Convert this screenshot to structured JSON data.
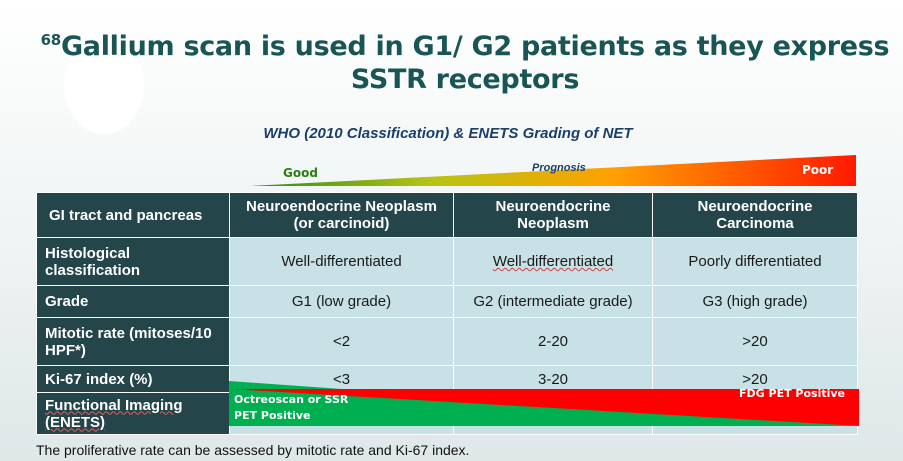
{
  "slide": {
    "title_sup": "68",
    "title_text": "Gallium scan is used in G1/ G2 patients as they express SSTR receptors",
    "subtitle": "WHO (2010 Classification)  & ENETS Grading of NET"
  },
  "prognosis": {
    "good": "Good",
    "middle": "Prognosis",
    "poor": "Poor"
  },
  "table": {
    "header": [
      "GI tract and pancreas",
      "Neuroendocrine Neoplasm (or carcinoid)",
      "Neuroendocrine Neoplasm",
      "Neuroendocrine Carcinoma"
    ],
    "rows": [
      {
        "label": "Histological classification",
        "cells": [
          "Well-differentiated",
          "Well-differentiated",
          "Poorly differentiated"
        ]
      },
      {
        "label": "Grade",
        "cells": [
          "G1 (low grade)",
          "G2 (intermediate grade)",
          "G3 (high grade)"
        ]
      },
      {
        "label": "Mitotic rate (mitoses/10 HPF*)",
        "cells": [
          "<2",
          "2-20",
          ">20"
        ]
      },
      {
        "label": "Ki-67 index (%)",
        "cells": [
          "<3",
          "3-20",
          ">20"
        ]
      },
      {
        "label": "Functional Imaging (ENETS)",
        "cells": [
          "",
          "",
          ""
        ]
      }
    ]
  },
  "imaging": {
    "octreoscan": "Octreoscan or SSR",
    "pet_positive": "PET Positive",
    "fdg": "FDG PET Positive"
  },
  "footnote": "The proliferative rate can be assessed  by mitotic rate and Ki-67 index.",
  "colors": {
    "header_bg": "#244549",
    "cell_bg": "#c8e1e6",
    "title": "#1a5555",
    "good": "#00b050",
    "poor": "#ff0000"
  }
}
